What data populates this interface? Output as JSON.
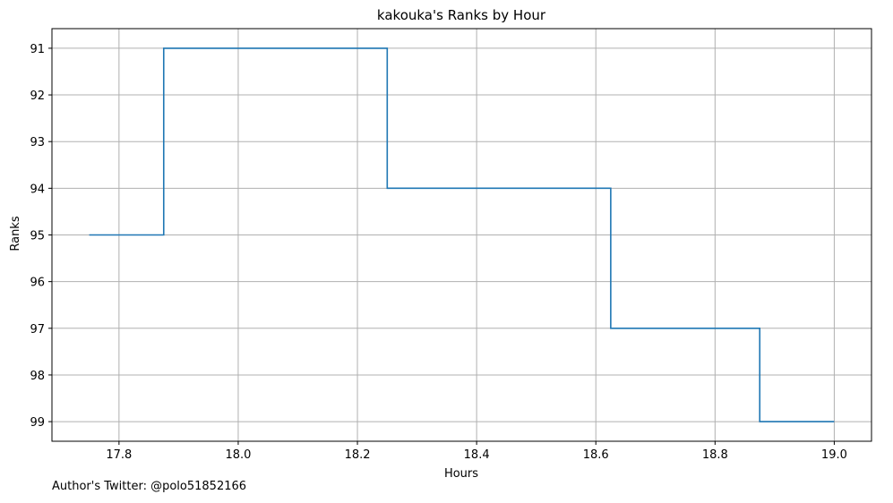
{
  "chart_data": {
    "type": "line",
    "step": "post",
    "title": "kakouka's Ranks by Hour",
    "xlabel": "Hours",
    "ylabel": "Ranks",
    "x": [
      17.75,
      17.875,
      18.25,
      18.625,
      18.875,
      19.0
    ],
    "y": [
      95,
      91,
      94,
      97,
      99,
      99
    ],
    "xlim": [
      17.6875,
      19.0625
    ],
    "ylim": [
      99.42,
      90.58
    ],
    "y_inverted": true,
    "x_ticks": [
      17.8,
      18.0,
      18.2,
      18.4,
      18.6,
      18.8,
      19.0
    ],
    "x_tick_labels": [
      "17.8",
      "18.0",
      "18.2",
      "18.4",
      "18.6",
      "18.8",
      "19.0"
    ],
    "y_ticks": [
      91,
      92,
      93,
      94,
      95,
      96,
      97,
      98,
      99
    ],
    "y_tick_labels": [
      "91",
      "92",
      "93",
      "94",
      "95",
      "96",
      "97",
      "98",
      "99"
    ],
    "grid": true,
    "line_color": "#1f77b4",
    "grid_color": "#b0b0b0"
  },
  "footer": {
    "caption": "Author's Twitter: @polo51852166"
  }
}
